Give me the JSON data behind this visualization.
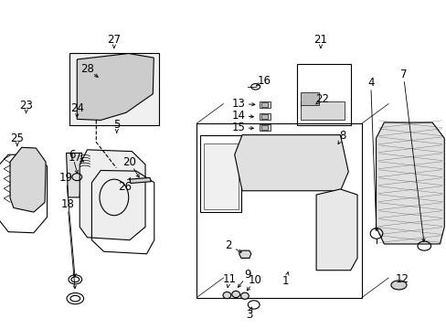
{
  "bg_color": "#ffffff",
  "line_color": "#000000",
  "text_color": "#000000",
  "lw": 0.8,
  "font_size": 8.5,
  "labels": {
    "1": [
      0.64,
      0.145,
      0.645,
      0.175
    ],
    "2": [
      0.51,
      0.255,
      0.547,
      0.228
    ],
    "3": [
      0.558,
      0.043,
      0.565,
      0.075
    ],
    "4": [
      0.83,
      0.75,
      0.843,
      0.288
    ],
    "5": [
      0.261,
      0.62,
      0.261,
      0.588
    ],
    "6": [
      0.161,
      0.53,
      0.175,
      0.463
    ],
    "7": [
      0.903,
      0.775,
      0.95,
      0.255
    ],
    "8": [
      0.768,
      0.588,
      0.756,
      0.56
    ],
    "9": [
      0.555,
      0.165,
      0.528,
      0.118
    ],
    "10": [
      0.571,
      0.148,
      0.548,
      0.108
    ],
    "11": [
      0.513,
      0.15,
      0.508,
      0.116
    ],
    "12": [
      0.9,
      0.15,
      0.893,
      0.145
    ],
    "13": [
      0.535,
      0.685,
      0.578,
      0.682
    ],
    "14": [
      0.535,
      0.648,
      0.575,
      0.645
    ],
    "15": [
      0.535,
      0.612,
      0.575,
      0.61
    ],
    "16": [
      0.592,
      0.755,
      0.572,
      0.738
    ],
    "17": [
      0.168,
      0.52,
      0.188,
      0.508
    ],
    "18": [
      0.151,
      0.38,
      0.168,
      0.112
    ],
    "19": [
      0.148,
      0.46,
      0.168,
      0.148
    ],
    "20": [
      0.29,
      0.508,
      0.315,
      0.452
    ],
    "21": [
      0.718,
      0.88,
      0.718,
      0.845
    ],
    "22": [
      0.722,
      0.7,
      0.702,
      0.678
    ],
    "23": [
      0.058,
      0.68,
      0.058,
      0.648
    ],
    "24": [
      0.172,
      0.672,
      0.172,
      0.642
    ],
    "25": [
      0.038,
      0.58,
      0.038,
      0.548
    ],
    "26": [
      0.28,
      0.432,
      0.295,
      0.468
    ],
    "27": [
      0.255,
      0.88,
      0.255,
      0.845
    ],
    "28": [
      0.195,
      0.79,
      0.225,
      0.76
    ]
  }
}
